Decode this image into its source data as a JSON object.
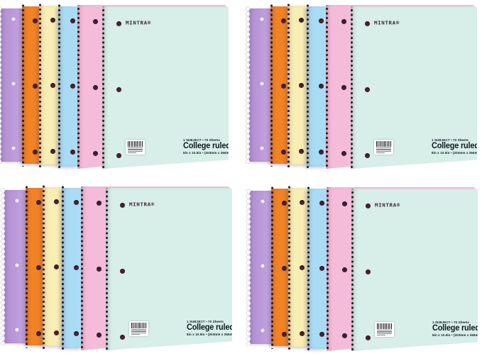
{
  "product": {
    "brand": "MINTRA®",
    "label": {
      "line1": "1 SUBJECT • 70 Sheets",
      "line2": "College ruled",
      "line3": "8in x 10.5in • (203mm x 266mm)"
    }
  },
  "palette": {
    "background": "#ffffff",
    "lavender": "#b18ed2",
    "orange": "#f28325",
    "cream": "#f8eeb4",
    "blue": "#a9dcf4",
    "pink": "#f5bcda",
    "mint": "#d7eee9",
    "hole_dark": "#4a2130",
    "hole_light": "#f2ecf7",
    "coil_dark": "#241418",
    "coil_light": "#d4cade",
    "brand_ink": "#40222e",
    "label_ink": "#10181d"
  },
  "notebooks": [
    {
      "name": "lavender spiral notebook",
      "color_key": "lavender"
    },
    {
      "name": "orange spiral notebook",
      "color_key": "orange"
    },
    {
      "name": "cream spiral notebook",
      "color_key": "cream"
    },
    {
      "name": "blue spiral notebook",
      "color_key": "blue"
    },
    {
      "name": "pink spiral notebook",
      "color_key": "pink"
    },
    {
      "name": "mint spiral notebook (front, College ruled cover)",
      "color_key": "mint"
    }
  ],
  "stacks": 4
}
